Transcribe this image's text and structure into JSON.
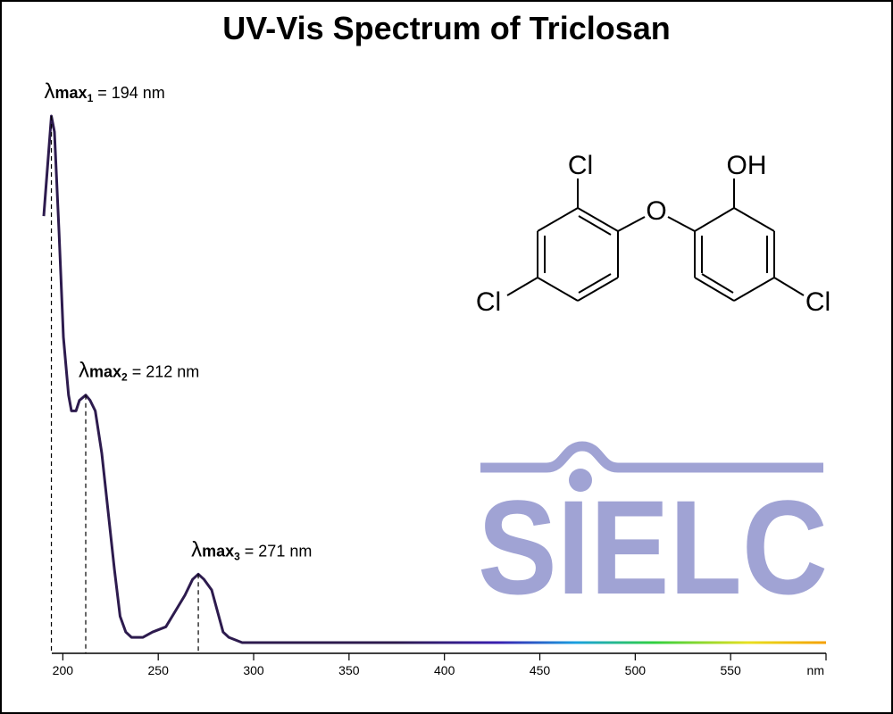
{
  "chart_data": {
    "type": "line",
    "title": "UV-Vis Spectrum of Triclosan",
    "xlabel": "nm",
    "x": [
      190,
      194,
      195.6,
      198,
      200.3,
      203,
      204.5,
      206.9,
      208.7,
      212,
      214.3,
      217,
      220.4,
      223.7,
      227,
      230,
      233,
      236,
      242,
      247,
      254,
      259,
      264,
      268,
      271,
      274,
      278,
      281,
      284,
      287,
      294,
      350,
      400,
      450,
      500,
      550,
      600
    ],
    "series": [
      {
        "name": "Triclosan",
        "color": "#2d1b4e",
        "values": [
          0.81,
          1.0,
          0.97,
          0.78,
          0.58,
          0.47,
          0.44,
          0.44,
          0.46,
          0.47,
          0.46,
          0.44,
          0.36,
          0.25,
          0.14,
          0.05,
          0.02,
          0.01,
          0.01,
          0.02,
          0.03,
          0.06,
          0.09,
          0.12,
          0.13,
          0.12,
          0.1,
          0.06,
          0.02,
          0.01,
          0,
          0,
          0,
          0,
          0,
          0,
          0
        ]
      }
    ],
    "xlim": [
      190,
      600
    ],
    "xticks": [
      200,
      250,
      300,
      350,
      400,
      450,
      500,
      550
    ],
    "ylim": [
      0,
      1
    ],
    "annotations": [
      {
        "label": "λ",
        "sub1": "max",
        "sub2": "1",
        "text": " = 194 nm",
        "x": 194,
        "point": 1
      },
      {
        "label": "λ",
        "sub1": "max",
        "sub2": "2",
        "text": " = 212 nm",
        "x": 212,
        "point": 9
      },
      {
        "label": "λ",
        "sub1": "max",
        "sub2": "3",
        "text": " = 271 nm",
        "x": 271,
        "point": 24
      }
    ]
  },
  "structure": {
    "atoms": [
      "Cl",
      "O",
      "OH",
      "Cl",
      "Cl"
    ]
  },
  "logo": "SIELC"
}
